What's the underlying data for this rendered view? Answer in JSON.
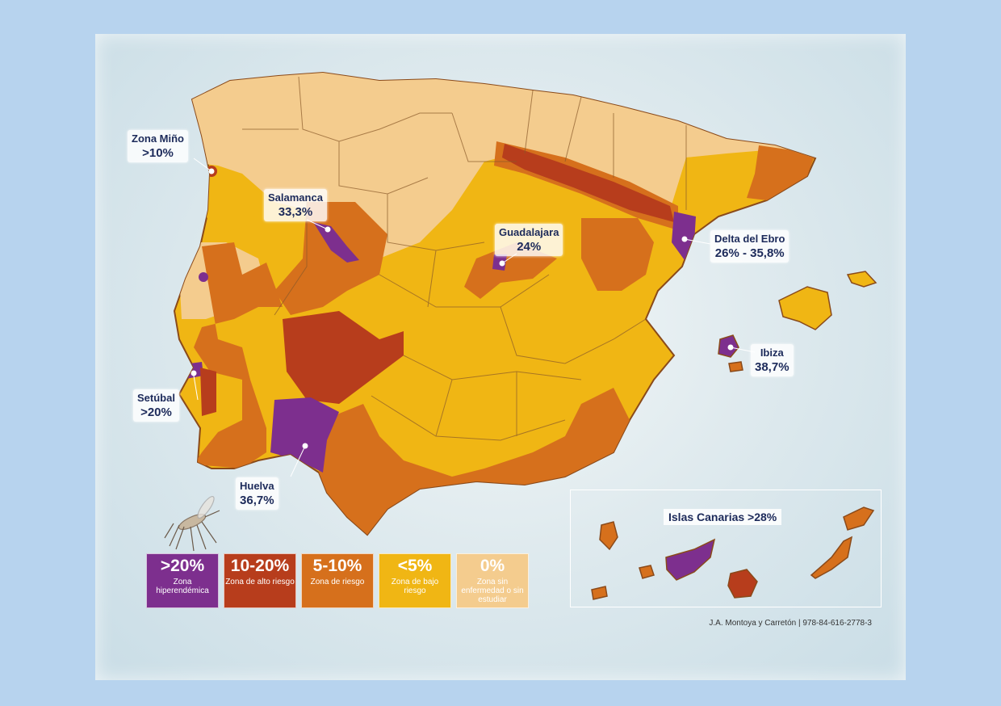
{
  "colors": {
    "hyper": "#7d2f8e",
    "high": "#b73d1c",
    "risk": "#d6701c",
    "low": "#f0b614",
    "none": "#f4cc8e"
  },
  "labels": {
    "zona_mino": {
      "name": "Zona Miño",
      "value": ">10%"
    },
    "salamanca": {
      "name": "Salamanca",
      "value": "33,3%"
    },
    "guadalajara": {
      "name": "Guadalajara",
      "value": "24%"
    },
    "delta_ebro": {
      "name": "Delta del Ebro",
      "value": "26% - 35,8%"
    },
    "ibiza": {
      "name": "Ibiza",
      "value": "38,7%"
    },
    "setubal": {
      "name": "Setúbal",
      "value": ">20%"
    },
    "huelva": {
      "name": "Huelva",
      "value": "36,7%"
    },
    "canarias": "Islas Canarias >28%"
  },
  "legend": [
    {
      "value": ">20%",
      "desc": "Zona hiperendémica"
    },
    {
      "value": "10-20%",
      "desc": "Zona de alto riesgo"
    },
    {
      "value": "5-10%",
      "desc": "Zona de riesgo"
    },
    {
      "value": "<5%",
      "desc": "Zona de bajo riesgo"
    },
    {
      "value": "0%",
      "desc": "Zona sin enfermedad o sin estudiar"
    }
  ],
  "credit": "J.A. Montoya y Carretón   |   978-84-616-2778-3"
}
